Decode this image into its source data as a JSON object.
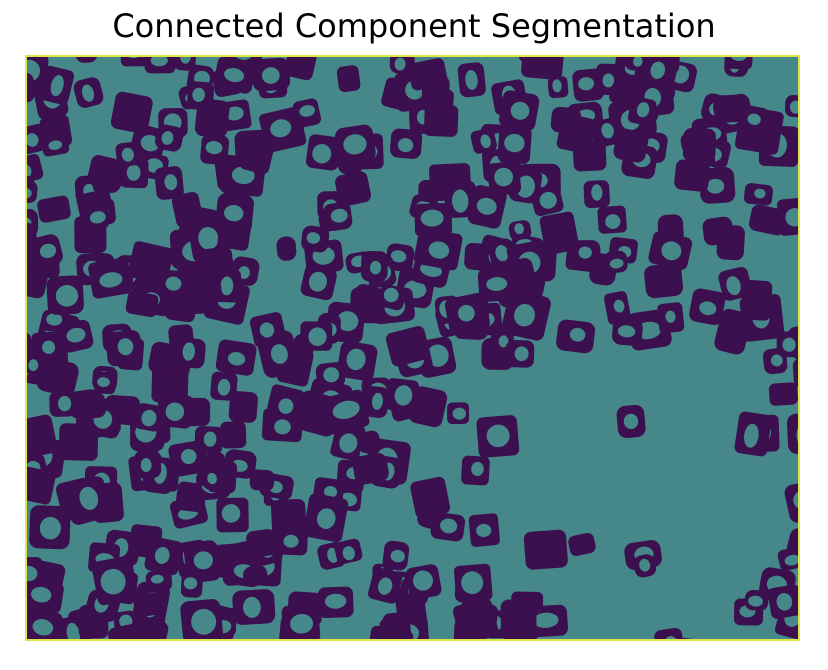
{
  "title": "Connected Component Segmentation",
  "colors": {
    "background": "#46888a",
    "blob": "#3c0f4f",
    "border": "#dce64a"
  }
}
